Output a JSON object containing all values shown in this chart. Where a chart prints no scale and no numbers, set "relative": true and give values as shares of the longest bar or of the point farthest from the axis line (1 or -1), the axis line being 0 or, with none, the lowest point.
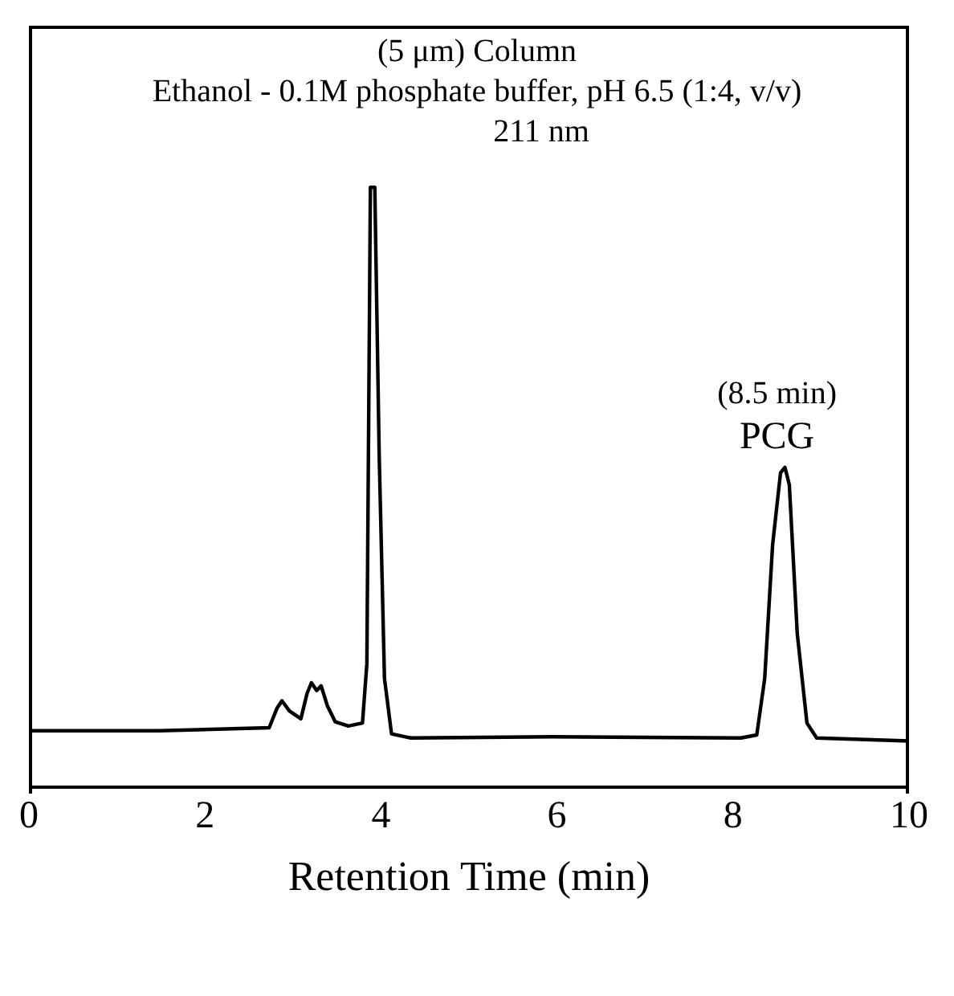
{
  "chart_data": {
    "type": "line",
    "title": "(5 μm) Column",
    "subtitle": "Ethanol - 0.1M phosphate buffer, pH 6.5 (1:4, v/v)",
    "xlabel": "Retention Time (min)",
    "relative": true,
    "xlim": [
      0,
      10
    ],
    "xticks": [
      0,
      2,
      4,
      6,
      8,
      10
    ],
    "marker": "none",
    "line_style": "solid",
    "annotations": [
      "211 nm",
      {
        "text": "(8.5 min)",
        "x": 8.5,
        "y": 0.533
      },
      {
        "text": "PCG",
        "x": 8.5,
        "y": 0.533
      }
    ],
    "series": [
      {
        "color": "#000000",
        "x": [
          0,
          1.48,
          2.73,
          2.82,
          2.875,
          2.96,
          3.09,
          3.16,
          3.21,
          3.27,
          3.32,
          3.39,
          3.48,
          3.63,
          3.79,
          3.84,
          3.88,
          3.93,
          3.98,
          4.04,
          4.12,
          4.34,
          5.95,
          8.09,
          8.27,
          8.36,
          8.45,
          8.54,
          8.59,
          8.64,
          8.73,
          8.84,
          8.95,
          10
        ],
        "values": [
          0.094,
          0.094,
          0.099,
          0.132,
          0.144,
          0.127,
          0.114,
          0.156,
          0.174,
          0.161,
          0.169,
          0.136,
          0.109,
          0.102,
          0.107,
          0.206,
          1,
          1,
          0.553,
          0.181,
          0.089,
          0.082,
          0.084,
          0.082,
          0.087,
          0.181,
          0.404,
          0.524,
          0.533,
          0.504,
          0.256,
          0.107,
          0.082,
          0.077
        ]
      }
    ]
  }
}
